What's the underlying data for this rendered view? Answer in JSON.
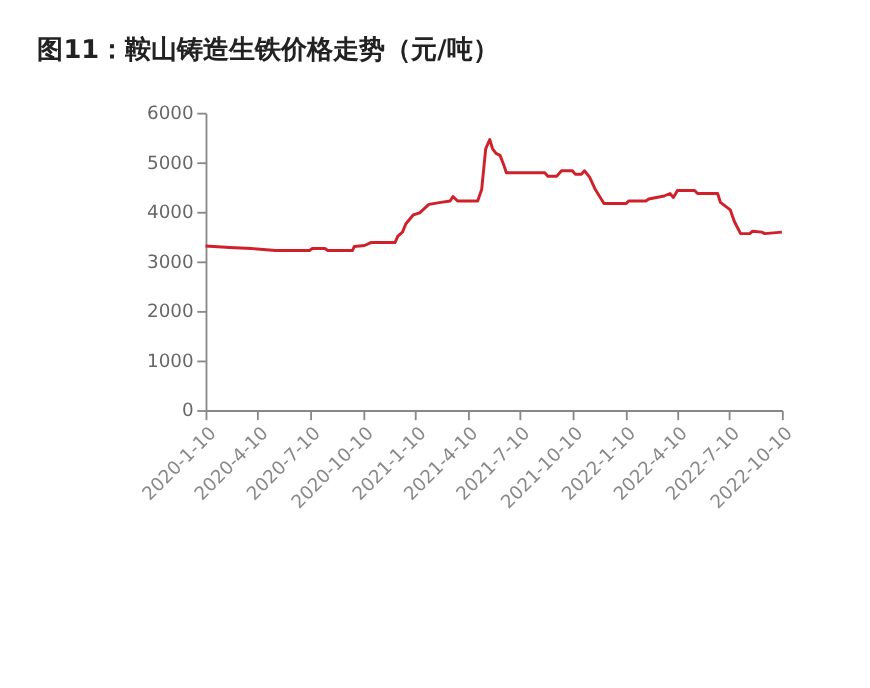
{
  "chart_data": {
    "type": "line",
    "title": "图11：鞍山铸造生铁价格走势（元/吨）",
    "x": [
      "2020-01-10",
      "2020-02-21",
      "2020-03-30",
      "2020-05-11",
      "2020-07-09",
      "2020-07-14",
      "2020-08-05",
      "2020-08-10",
      "2020-09-22",
      "2020-09-25",
      "2020-10-13",
      "2020-10-24",
      "2020-12-05",
      "2020-12-10",
      "2020-12-18",
      "2020-12-24",
      "2021-01-06",
      "2021-01-17",
      "2021-02-02",
      "2021-02-23",
      "2021-03-11",
      "2021-03-16",
      "2021-03-24",
      "2021-04-28",
      "2021-05-05",
      "2021-05-12",
      "2021-05-19",
      "2021-05-24",
      "2021-05-30",
      "2021-06-06",
      "2021-06-13",
      "2021-06-17",
      "2021-08-23",
      "2021-08-28",
      "2021-09-13",
      "2021-09-21",
      "2021-10-10",
      "2021-10-15",
      "2021-10-26",
      "2021-10-31",
      "2021-11-09",
      "2021-11-19",
      "2021-12-04",
      "2022-01-12",
      "2022-01-16",
      "2022-02-15",
      "2022-02-20",
      "2022-03-19",
      "2022-03-29",
      "2022-04-04",
      "2022-04-11",
      "2022-05-11",
      "2022-05-16",
      "2022-06-20",
      "2022-06-25",
      "2022-07-12",
      "2022-07-19",
      "2022-07-30",
      "2022-08-15",
      "2022-08-20",
      "2022-09-05",
      "2022-09-10",
      "2022-10-10"
    ],
    "series": [
      {
        "color": "#d0202a",
        "values": [
          3310,
          3280,
          3260,
          3220,
          3220,
          3260,
          3260,
          3220,
          3220,
          3300,
          3320,
          3380,
          3380,
          3510,
          3590,
          3760,
          3940,
          3980,
          4150,
          4190,
          4220,
          4310,
          4220,
          4220,
          4450,
          5270,
          5460,
          5270,
          5180,
          5140,
          4930,
          4790,
          4790,
          4720,
          4720,
          4830,
          4830,
          4760,
          4760,
          4830,
          4700,
          4450,
          4170,
          4170,
          4220,
          4220,
          4260,
          4320,
          4370,
          4290,
          4430,
          4430,
          4370,
          4370,
          4190,
          4040,
          3810,
          3560,
          3560,
          3610,
          3590,
          3560,
          3590
        ]
      }
    ],
    "xlim": [
      "2020-01-10",
      "2022-10-10"
    ],
    "xticks": [
      {
        "value": "2020-01-10",
        "label": "2020-1-10"
      },
      {
        "value": "2020-04-10",
        "label": "2020-4-10"
      },
      {
        "value": "2020-07-10",
        "label": "2020-7-10"
      },
      {
        "value": "2020-10-10",
        "label": "2020-10-10"
      },
      {
        "value": "2021-01-10",
        "label": "2021-1-10"
      },
      {
        "value": "2021-04-10",
        "label": "2021-4-10"
      },
      {
        "value": "2021-07-10",
        "label": "2021-7-10"
      },
      {
        "value": "2021-10-10",
        "label": "2021-10-10"
      },
      {
        "value": "2022-01-10",
        "label": "2022-1-10"
      },
      {
        "value": "2022-04-10",
        "label": "2022-4-10"
      },
      {
        "value": "2022-07-10",
        "label": "2022-7-10"
      },
      {
        "value": "2022-10-10",
        "label": "2022-10-10"
      }
    ],
    "ylim": [
      0,
      6000
    ],
    "yticks": [
      0,
      1000,
      2000,
      3000,
      4000,
      5000,
      6000
    ],
    "grid": false,
    "legend": false,
    "marker": "none",
    "line_style": "solid"
  }
}
